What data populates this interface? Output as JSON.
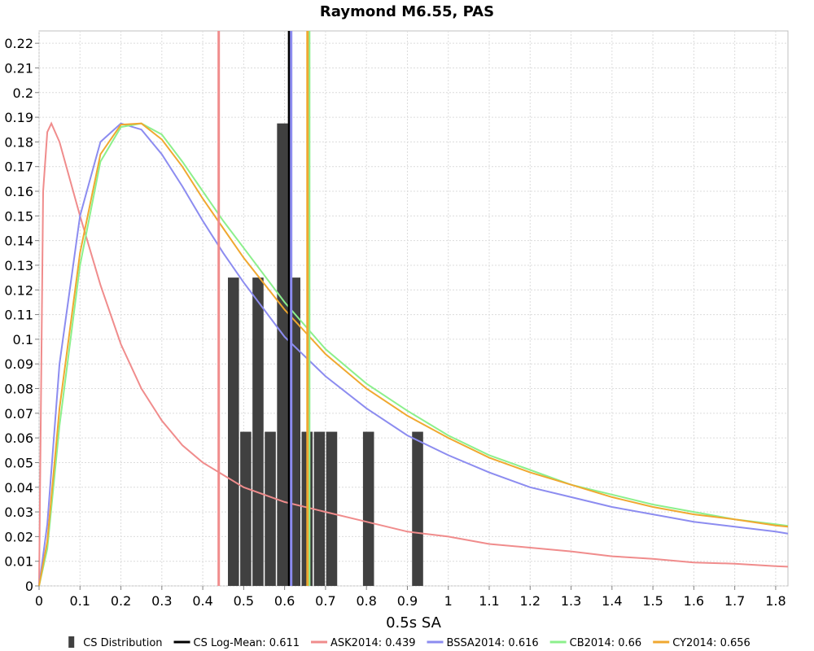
{
  "chart_data": {
    "type": "bar",
    "title": "Raymond M6.55, PAS",
    "xlabel": "0.5s SA",
    "ylabel": "",
    "xlim": [
      0,
      1.83
    ],
    "ylim": [
      0,
      0.225
    ],
    "xticks": [
      0,
      0.1,
      0.2,
      0.3,
      0.4,
      0.5,
      0.6,
      0.7,
      0.8,
      0.9,
      1,
      1.1,
      1.2,
      1.3,
      1.4,
      1.5,
      1.6,
      1.7,
      1.8
    ],
    "yticks": [
      0,
      0.01,
      0.02,
      0.03,
      0.04,
      0.05,
      0.06,
      0.07,
      0.08,
      0.09,
      0.1,
      0.11,
      0.12,
      0.13,
      0.14,
      0.15,
      0.16,
      0.17,
      0.18,
      0.19,
      0.2,
      0.21,
      0.22
    ],
    "grid": true,
    "legend_position": "bottom",
    "histogram": {
      "name": "CS Distribution",
      "color": "#404040",
      "bin_width": 0.03,
      "centers": [
        0.475,
        0.505,
        0.535,
        0.565,
        0.595,
        0.625,
        0.655,
        0.685,
        0.715,
        0.805,
        0.925
      ],
      "values": [
        0.125,
        0.0625,
        0.125,
        0.0625,
        0.1875,
        0.125,
        0.0625,
        0.0625,
        0.0625,
        0.0625,
        0.0625
      ]
    },
    "vertical_lines": [
      {
        "name": "CS Log-Mean: 0.611",
        "x": 0.611,
        "color": "#000000"
      },
      {
        "name": "ASK2014: 0.439",
        "x": 0.439,
        "color": "#f08c8c"
      },
      {
        "name": "BSSA2014: 0.616",
        "x": 0.616,
        "color": "#8c8cf0"
      },
      {
        "name": "CB2014: 0.66",
        "x": 0.66,
        "color": "#8cf08c"
      },
      {
        "name": "CY2014: 0.656",
        "x": 0.656,
        "color": "#f0a830"
      }
    ],
    "series": [
      {
        "name": "ASK2014: 0.439",
        "color": "#f08c8c",
        "x": [
          0.0,
          0.01,
          0.02,
          0.03,
          0.05,
          0.075,
          0.1,
          0.15,
          0.2,
          0.25,
          0.3,
          0.35,
          0.4,
          0.45,
          0.5,
          0.6,
          0.7,
          0.8,
          0.9,
          1.0,
          1.1,
          1.2,
          1.3,
          1.4,
          1.5,
          1.6,
          1.7,
          1.8,
          1.83
        ],
        "y": [
          0.0,
          0.16,
          0.184,
          0.1875,
          0.18,
          0.165,
          0.15,
          0.122,
          0.098,
          0.08,
          0.067,
          0.057,
          0.05,
          0.045,
          0.04,
          0.034,
          0.03,
          0.026,
          0.022,
          0.02,
          0.017,
          0.0155,
          0.014,
          0.012,
          0.011,
          0.0095,
          0.009,
          0.008,
          0.0078
        ]
      },
      {
        "name": "BSSA2014: 0.616",
        "color": "#8c8cf0",
        "x": [
          0.0,
          0.02,
          0.05,
          0.1,
          0.15,
          0.2,
          0.25,
          0.3,
          0.35,
          0.4,
          0.45,
          0.5,
          0.6,
          0.7,
          0.8,
          0.9,
          1.0,
          1.1,
          1.2,
          1.3,
          1.4,
          1.5,
          1.6,
          1.7,
          1.8,
          1.83
        ],
        "y": [
          0.0,
          0.025,
          0.09,
          0.15,
          0.18,
          0.1875,
          0.185,
          0.175,
          0.162,
          0.148,
          0.135,
          0.123,
          0.101,
          0.085,
          0.072,
          0.061,
          0.053,
          0.046,
          0.04,
          0.036,
          0.032,
          0.029,
          0.026,
          0.024,
          0.022,
          0.0212
        ]
      },
      {
        "name": "CB2014: 0.66",
        "color": "#8cf08c",
        "x": [
          0.0,
          0.02,
          0.05,
          0.1,
          0.15,
          0.2,
          0.25,
          0.3,
          0.35,
          0.4,
          0.45,
          0.5,
          0.6,
          0.7,
          0.8,
          0.9,
          1.0,
          1.1,
          1.2,
          1.3,
          1.4,
          1.5,
          1.6,
          1.7,
          1.8,
          1.83
        ],
        "y": [
          0.0,
          0.015,
          0.065,
          0.13,
          0.172,
          0.186,
          0.1875,
          0.183,
          0.172,
          0.16,
          0.148,
          0.137,
          0.115,
          0.096,
          0.082,
          0.071,
          0.061,
          0.053,
          0.047,
          0.041,
          0.037,
          0.033,
          0.03,
          0.027,
          0.025,
          0.0243
        ]
      },
      {
        "name": "CY2014: 0.656",
        "color": "#f0a830",
        "x": [
          0.0,
          0.02,
          0.05,
          0.1,
          0.15,
          0.2,
          0.25,
          0.3,
          0.35,
          0.4,
          0.45,
          0.5,
          0.6,
          0.7,
          0.8,
          0.9,
          1.0,
          1.1,
          1.2,
          1.3,
          1.4,
          1.5,
          1.6,
          1.7,
          1.8,
          1.83
        ],
        "y": [
          0.0,
          0.018,
          0.072,
          0.135,
          0.175,
          0.187,
          0.1875,
          0.181,
          0.17,
          0.157,
          0.145,
          0.133,
          0.112,
          0.094,
          0.08,
          0.069,
          0.06,
          0.052,
          0.046,
          0.041,
          0.036,
          0.032,
          0.029,
          0.027,
          0.0245,
          0.024
        ]
      }
    ]
  }
}
